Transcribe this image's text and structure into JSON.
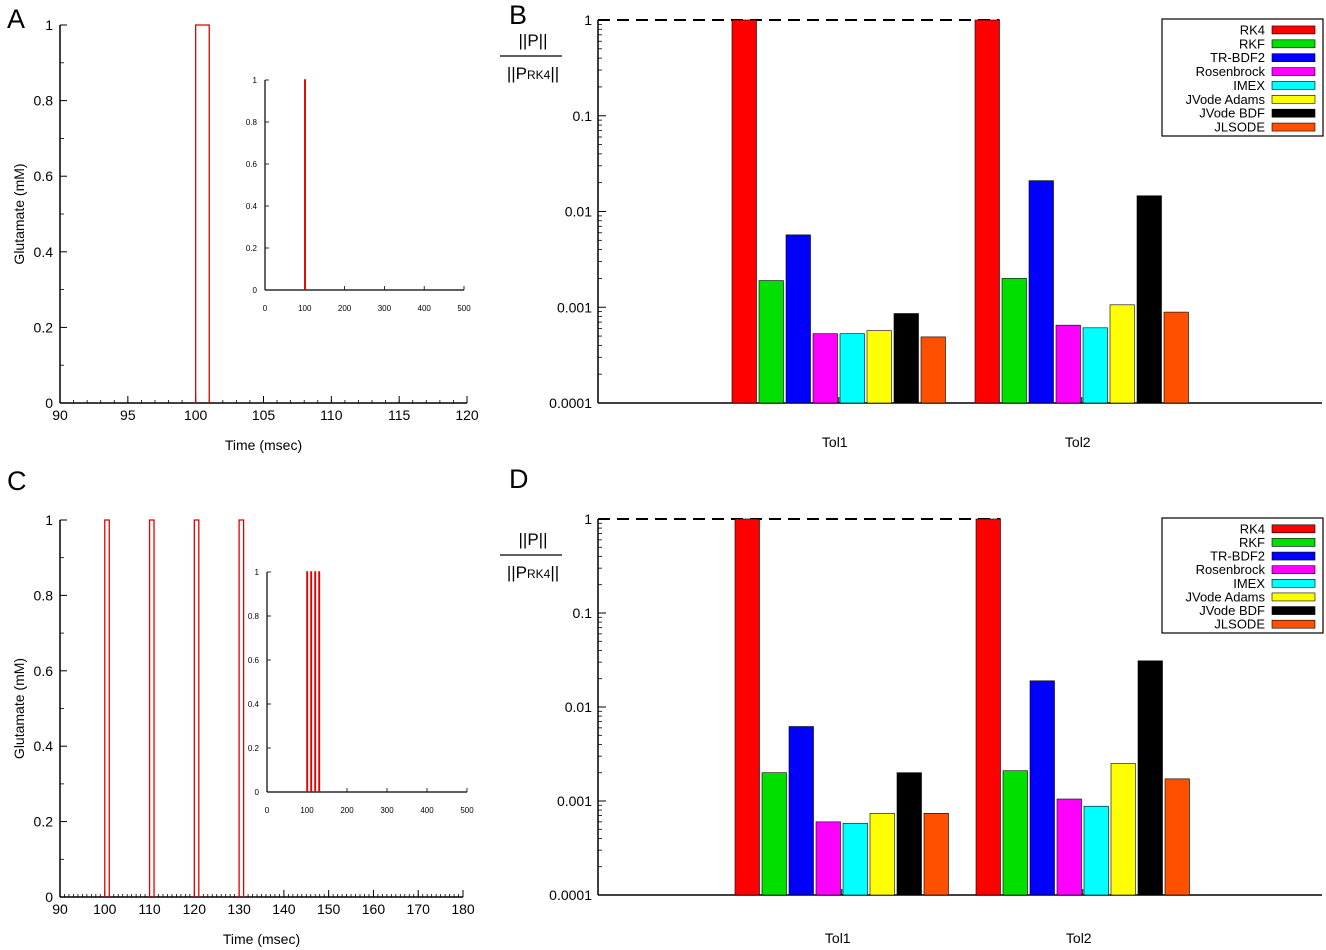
{
  "chart_data": [
    {
      "panel": "A",
      "type": "line",
      "xlabel": "Time (msec)",
      "ylabel": "Glutamate (mM)",
      "xlim": [
        90,
        120
      ],
      "ylim": [
        0,
        1
      ],
      "xticks": [
        90,
        95,
        100,
        105,
        110,
        115,
        120
      ],
      "yticks": [
        0,
        0.2,
        0.4,
        0.6,
        0.8,
        1
      ],
      "color": "#e00000",
      "pulses": [
        {
          "start": 100,
          "end": 101,
          "value": 1
        }
      ],
      "inset": {
        "xlim": [
          0,
          500
        ],
        "ylim": [
          0,
          1
        ],
        "xticks": [
          0,
          100,
          200,
          300,
          400,
          500
        ],
        "yticks": [
          0,
          0.2,
          0.4,
          0.6,
          0.8,
          1
        ],
        "pulses": [
          {
            "start": 100,
            "end": 101,
            "value": 1
          }
        ]
      }
    },
    {
      "panel": "B",
      "type": "bar",
      "yscale": "log",
      "ylim": [
        0.0001,
        1
      ],
      "yticks": [
        0.0001,
        0.001,
        0.01,
        0.1,
        1
      ],
      "ylabel_num": "||P||",
      "ylabel_den": "||P",
      "ylabel_den_sub": "RK4",
      "ylabel_den_end": "||",
      "reference_line": 1,
      "legend_position": "top-right",
      "categories": [
        "Tol1",
        "Tol2"
      ],
      "series": [
        {
          "name": "RK4",
          "color": "#ff0000",
          "values": [
            1,
            1
          ]
        },
        {
          "name": "RKF",
          "color": "#00e000",
          "values": [
            0.0019,
            0.002
          ]
        },
        {
          "name": "TR-BDF2",
          "color": "#0000ff",
          "values": [
            0.0057,
            0.021
          ]
        },
        {
          "name": "Rosenbrock",
          "color": "#ff00ff",
          "values": [
            0.00053,
            0.00065
          ]
        },
        {
          "name": "IMEX",
          "color": "#00ffff",
          "values": [
            0.00053,
            0.00061
          ]
        },
        {
          "name": "JVode Adams",
          "color": "#ffff00",
          "values": [
            0.00057,
            0.00106
          ]
        },
        {
          "name": "JVode BDF",
          "color": "#000000",
          "values": [
            0.00086,
            0.0146
          ]
        },
        {
          "name": "JLSODE",
          "color": "#ff5000",
          "values": [
            0.00049,
            0.00089
          ]
        }
      ]
    },
    {
      "panel": "C",
      "type": "line",
      "xlabel": "Time (msec)",
      "ylabel": "Glutamate (mM)",
      "xlim": [
        90,
        180
      ],
      "ylim": [
        0,
        1
      ],
      "xticks": [
        90,
        100,
        110,
        120,
        130,
        140,
        150,
        160,
        170,
        180
      ],
      "yticks": [
        0,
        0.2,
        0.4,
        0.6,
        0.8,
        1
      ],
      "color": "#e00000",
      "pulses": [
        {
          "start": 100,
          "end": 101,
          "value": 1
        },
        {
          "start": 110,
          "end": 111,
          "value": 1
        },
        {
          "start": 120,
          "end": 121,
          "value": 1
        },
        {
          "start": 130,
          "end": 131,
          "value": 1
        }
      ],
      "inset": {
        "xlim": [
          0,
          500
        ],
        "ylim": [
          0,
          1
        ],
        "xticks": [
          0,
          100,
          200,
          300,
          400,
          500
        ],
        "yticks": [
          0,
          0.2,
          0.4,
          0.6,
          0.8,
          1
        ],
        "pulses": [
          {
            "start": 100,
            "end": 101,
            "value": 1
          },
          {
            "start": 110,
            "end": 111,
            "value": 1
          },
          {
            "start": 120,
            "end": 121,
            "value": 1
          },
          {
            "start": 130,
            "end": 131,
            "value": 1
          }
        ]
      }
    },
    {
      "panel": "D",
      "type": "bar",
      "yscale": "log",
      "ylim": [
        0.0001,
        1
      ],
      "yticks": [
        0.0001,
        0.001,
        0.01,
        0.1,
        1
      ],
      "ylabel_num": "||P||",
      "ylabel_den": "||P",
      "ylabel_den_sub": "RK4",
      "ylabel_den_end": "||",
      "reference_line": 1,
      "legend_position": "top-right",
      "categories": [
        "Tol1",
        "Tol2"
      ],
      "series": [
        {
          "name": "RK4",
          "color": "#ff0000",
          "values": [
            1,
            1
          ]
        },
        {
          "name": "RKF",
          "color": "#00e000",
          "values": [
            0.002,
            0.0021
          ]
        },
        {
          "name": "TR-BDF2",
          "color": "#0000ff",
          "values": [
            0.0062,
            0.019
          ]
        },
        {
          "name": "Rosenbrock",
          "color": "#ff00ff",
          "values": [
            0.0006,
            0.00105
          ]
        },
        {
          "name": "IMEX",
          "color": "#00ffff",
          "values": [
            0.00058,
            0.00088
          ]
        },
        {
          "name": "JVode Adams",
          "color": "#ffff00",
          "values": [
            0.00074,
            0.0025
          ]
        },
        {
          "name": "JVode BDF",
          "color": "#000000",
          "values": [
            0.002,
            0.031
          ]
        },
        {
          "name": "JLSODE",
          "color": "#ff5000",
          "values": [
            0.00074,
            0.00172
          ]
        }
      ]
    }
  ]
}
